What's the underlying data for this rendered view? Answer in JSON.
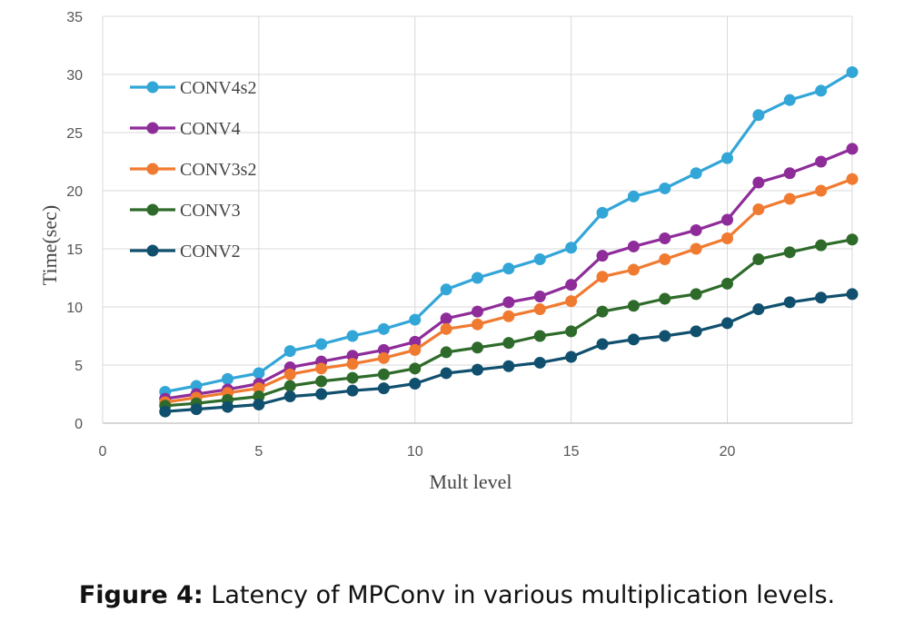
{
  "chart_data": {
    "type": "line",
    "xlabel": "Mult level",
    "ylabel": "Time(sec)",
    "xlim": [
      0,
      24
    ],
    "ylim": [
      0,
      35
    ],
    "xticks": [
      0,
      5,
      10,
      15,
      20
    ],
    "yticks": [
      0,
      5,
      10,
      15,
      20,
      25,
      30,
      35
    ],
    "grid": true,
    "legend_position": "top-left",
    "x": [
      2,
      3,
      4,
      5,
      6,
      7,
      8,
      9,
      10,
      11,
      12,
      13,
      14,
      15,
      16,
      17,
      18,
      19,
      20,
      21,
      22,
      23,
      24
    ],
    "series": [
      {
        "name": "CONV4s2",
        "color": "#33a6d8",
        "values": [
          2.7,
          3.2,
          3.8,
          4.3,
          6.2,
          6.8,
          7.5,
          8.1,
          8.9,
          11.5,
          12.5,
          13.3,
          14.1,
          15.1,
          18.1,
          19.5,
          20.2,
          21.5,
          22.8,
          26.5,
          27.8,
          28.6,
          30.2
        ]
      },
      {
        "name": "CONV4",
        "color": "#8e2c9a",
        "values": [
          2.1,
          2.5,
          2.9,
          3.4,
          4.8,
          5.3,
          5.8,
          6.3,
          7.0,
          9.0,
          9.6,
          10.4,
          10.9,
          11.9,
          14.4,
          15.2,
          15.9,
          16.6,
          17.5,
          20.7,
          21.5,
          22.5,
          23.6
        ]
      },
      {
        "name": "CONV3s2",
        "color": "#f07a30",
        "values": [
          1.8,
          2.2,
          2.6,
          3.0,
          4.2,
          4.7,
          5.1,
          5.6,
          6.3,
          8.1,
          8.5,
          9.2,
          9.8,
          10.5,
          12.6,
          13.2,
          14.1,
          15.0,
          15.9,
          18.4,
          19.3,
          20.0,
          21.0
        ]
      },
      {
        "name": "CONV3",
        "color": "#2e6b2a",
        "values": [
          1.5,
          1.7,
          2.0,
          2.3,
          3.2,
          3.6,
          3.9,
          4.2,
          4.7,
          6.1,
          6.5,
          6.9,
          7.5,
          7.9,
          9.6,
          10.1,
          10.7,
          11.1,
          12.0,
          14.1,
          14.7,
          15.3,
          15.8
        ]
      },
      {
        "name": "CONV2",
        "color": "#10506e",
        "values": [
          1.0,
          1.2,
          1.4,
          1.6,
          2.3,
          2.5,
          2.8,
          3.0,
          3.4,
          4.3,
          4.6,
          4.9,
          5.2,
          5.7,
          6.8,
          7.2,
          7.5,
          7.9,
          8.6,
          9.8,
          10.4,
          10.8,
          11.1
        ]
      }
    ]
  },
  "caption": {
    "label": "Figure 4:",
    "text": " Latency of MPConv in various multiplication levels."
  }
}
